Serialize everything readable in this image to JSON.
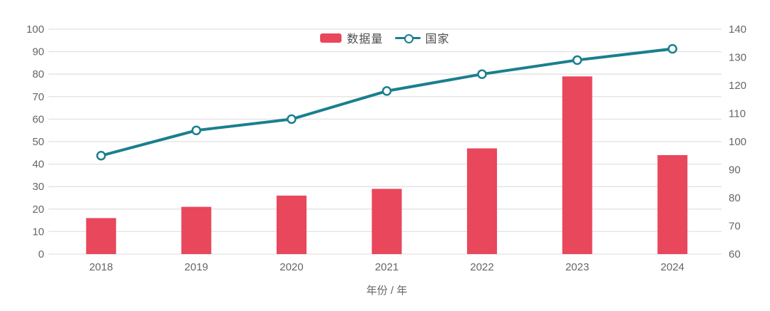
{
  "chart_data": {
    "type": "bar",
    "subtype": "bar-line-combo",
    "categories": [
      "2018",
      "2019",
      "2020",
      "2021",
      "2022",
      "2023",
      "2024"
    ],
    "series": [
      {
        "name": "数据量",
        "type": "bar",
        "axis": "left",
        "color": "#e8475c",
        "values": [
          16,
          21,
          26,
          29,
          47,
          79,
          44
        ]
      },
      {
        "name": "国家",
        "type": "line",
        "axis": "right",
        "color": "#1a7f8e",
        "marker": "open-circle",
        "values": [
          95,
          104,
          108,
          118,
          124,
          129,
          133
        ]
      }
    ],
    "title": "",
    "xlabel": "年份 / 年",
    "ylabel_left": "",
    "ylabel_right": "",
    "y_left": {
      "min": 0,
      "max": 100,
      "step": 10
    },
    "y_right": {
      "min": 60,
      "max": 140,
      "step": 10
    },
    "grid": "horizontal-only",
    "legend_position": "top-center",
    "colors": {
      "bar": "#e8475c",
      "line": "#1a7f8e",
      "marker_fill": "#ffffff",
      "gridline": "#e2e2e2",
      "tick_text": "#666666",
      "legend_text": "#4d4d4d",
      "background": "#ffffff"
    }
  }
}
